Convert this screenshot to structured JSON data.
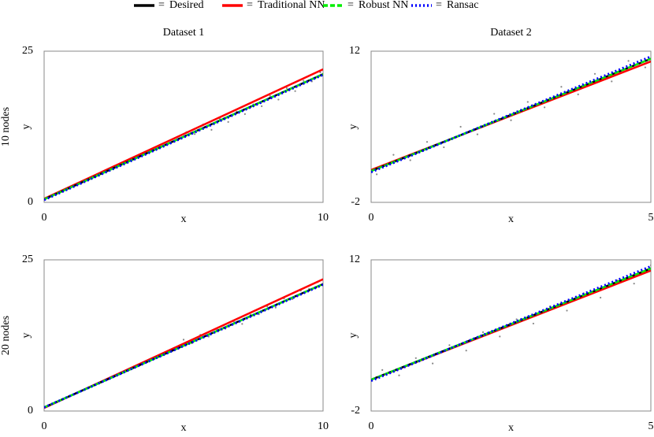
{
  "legend_separator": "=",
  "chart_data": [
    {
      "type": "line",
      "title": "Dataset 1",
      "row_label": "10 nodes",
      "xlabel": "x",
      "ylabel": "y",
      "xlim": [
        0,
        10
      ],
      "ylim": [
        0,
        25
      ],
      "xticks": [
        0,
        10
      ],
      "yticks": [
        0,
        25
      ],
      "x": [
        0,
        10
      ],
      "series": [
        {
          "name": "Desired",
          "color": "#000000",
          "style": "solid",
          "values": [
            0.5,
            21.2
          ]
        },
        {
          "name": "Traditional NN",
          "color": "#ff0000",
          "style": "solid",
          "values": [
            0.6,
            22.0
          ]
        },
        {
          "name": "Robust NN",
          "color": "#00ee00",
          "style": "dashed",
          "values": [
            0.5,
            21.2
          ]
        },
        {
          "name": "Ransac",
          "color": "#0000ff",
          "style": "dotted",
          "values": [
            0.4,
            21.1
          ]
        }
      ],
      "points": {
        "color": "#888888",
        "x": [
          5.1,
          5.4,
          5.7,
          6.0,
          6.3,
          6.6,
          6.9,
          7.2,
          7.5,
          7.8,
          8.1,
          8.4,
          8.7,
          9.0,
          9.3,
          9.6,
          9.9
        ],
        "y": [
          11.6,
          11.3,
          12.9,
          12.0,
          13.8,
          13.3,
          15.0,
          14.6,
          16.2,
          15.9,
          17.6,
          17.0,
          18.9,
          18.4,
          20.1,
          20.0,
          21.5
        ]
      }
    },
    {
      "type": "line",
      "title": "Dataset 2",
      "xlabel": "x",
      "ylabel": "y",
      "xlim": [
        0,
        5
      ],
      "ylim": [
        -2,
        12
      ],
      "xticks": [
        0,
        5
      ],
      "yticks": [
        -2,
        12
      ],
      "x": [
        0,
        5
      ],
      "series": [
        {
          "name": "Desired",
          "color": "#000000",
          "style": "solid",
          "values": [
            0.9,
            11.3
          ]
        },
        {
          "name": "Traditional NN",
          "color": "#ff0000",
          "style": "solid",
          "values": [
            1.0,
            11.05
          ]
        },
        {
          "name": "Robust NN",
          "color": "#00ee00",
          "style": "dashed",
          "values": [
            0.9,
            11.3
          ]
        },
        {
          "name": "Ransac",
          "color": "#0000ff",
          "style": "dotted",
          "values": [
            0.8,
            11.5
          ]
        }
      ],
      "points": {
        "color": "#888888",
        "x": [
          0.1,
          0.4,
          0.7,
          1.0,
          1.3,
          1.6,
          1.9,
          2.2,
          2.5,
          2.8,
          3.1,
          3.4,
          3.7,
          4.0,
          4.3,
          4.6,
          4.9
        ],
        "y": [
          0.6,
          2.4,
          1.9,
          3.6,
          3.1,
          5.0,
          4.3,
          6.2,
          5.6,
          7.3,
          6.8,
          8.7,
          8.0,
          9.9,
          9.2,
          11.1,
          10.5
        ]
      }
    },
    {
      "type": "line",
      "row_label": "20 nodes",
      "xlabel": "x",
      "ylabel": "y",
      "xlim": [
        0,
        10
      ],
      "ylim": [
        0,
        25
      ],
      "xticks": [
        0,
        10
      ],
      "yticks": [
        0,
        25
      ],
      "x": [
        0,
        10
      ],
      "series": [
        {
          "name": "Desired",
          "color": "#000000",
          "style": "solid",
          "values": [
            0.6,
            21.0
          ]
        },
        {
          "name": "Traditional NN",
          "color": "#ff0000",
          "style": "solid",
          "values": [
            0.5,
            21.8
          ]
        },
        {
          "name": "Robust NN",
          "color": "#00ee00",
          "style": "dashed",
          "values": [
            0.6,
            21.0
          ]
        },
        {
          "name": "Ransac",
          "color": "#0000ff",
          "style": "dotted",
          "values": [
            0.6,
            20.9
          ]
        }
      ],
      "points": {
        "color": "#888888",
        "x": [
          5.0,
          5.3,
          5.6,
          5.9,
          6.2,
          6.5,
          6.8,
          7.1,
          7.4,
          7.7,
          8.0,
          8.3,
          8.6,
          8.9,
          9.2,
          9.5,
          9.8
        ],
        "y": [
          11.8,
          11.2,
          12.6,
          12.3,
          13.5,
          13.6,
          14.8,
          14.4,
          15.9,
          16.0,
          17.3,
          17.1,
          18.6,
          18.5,
          19.9,
          20.2,
          21.3
        ]
      }
    },
    {
      "type": "line",
      "xlabel": "x",
      "ylabel": "y",
      "xlim": [
        0,
        5
      ],
      "ylim": [
        -2,
        12
      ],
      "xticks": [
        0,
        5
      ],
      "yticks": [
        -2,
        12
      ],
      "x": [
        0,
        5
      ],
      "series": [
        {
          "name": "Desired",
          "color": "#000000",
          "style": "solid",
          "values": [
            0.9,
            11.2
          ]
        },
        {
          "name": "Traditional NN",
          "color": "#ff0000",
          "style": "solid",
          "values": [
            0.9,
            11.0
          ]
        },
        {
          "name": "Robust NN",
          "color": "#00ee00",
          "style": "dashed",
          "values": [
            0.9,
            11.2
          ]
        },
        {
          "name": "Ransac",
          "color": "#0000ff",
          "style": "dotted",
          "values": [
            0.8,
            11.4
          ]
        }
      ],
      "points": {
        "color": "#888888",
        "x": [
          0.2,
          0.5,
          0.8,
          1.1,
          1.4,
          1.7,
          2.0,
          2.3,
          2.6,
          2.9,
          3.2,
          3.5,
          3.8,
          4.1,
          4.4,
          4.7,
          5.0
        ],
        "y": [
          1.8,
          1.3,
          2.9,
          2.4,
          4.1,
          3.6,
          5.3,
          4.9,
          6.5,
          6.1,
          7.7,
          7.3,
          8.9,
          8.5,
          10.1,
          9.8,
          11.5
        ]
      }
    }
  ]
}
